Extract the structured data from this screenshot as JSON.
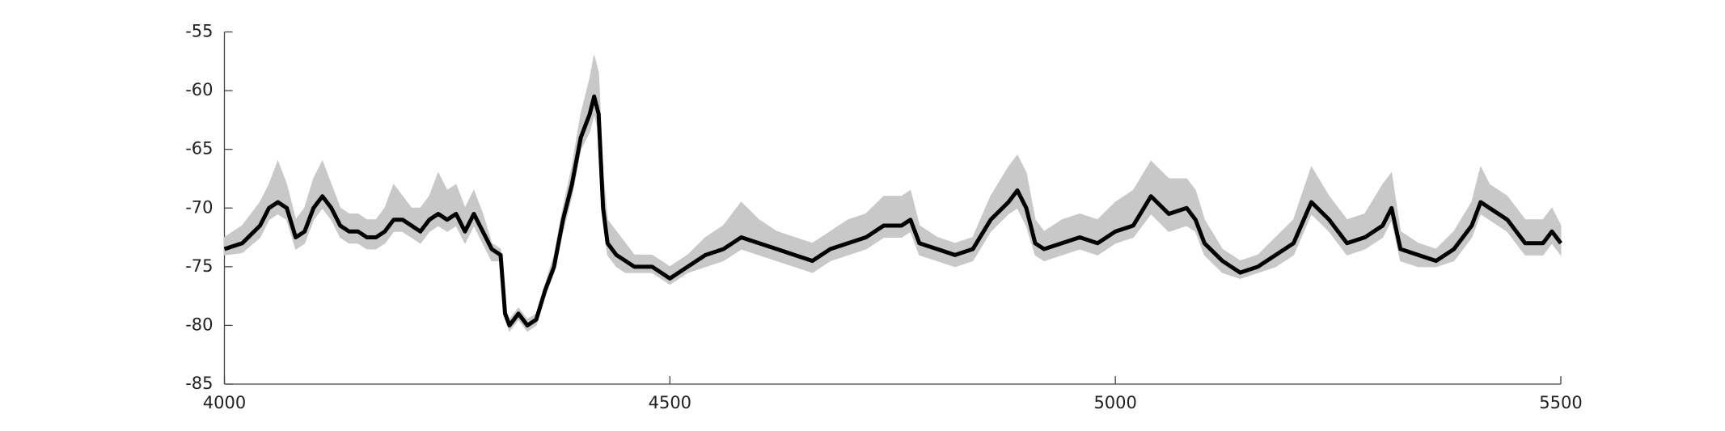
{
  "chart_data": {
    "type": "line",
    "x": [
      4000,
      4020,
      4040,
      4050,
      4060,
      4070,
      4080,
      4090,
      4100,
      4110,
      4120,
      4130,
      4140,
      4150,
      4160,
      4170,
      4180,
      4190,
      4200,
      4210,
      4220,
      4230,
      4240,
      4250,
      4260,
      4270,
      4280,
      4290,
      4300,
      4310,
      4315,
      4320,
      4330,
      4340,
      4350,
      4360,
      4370,
      4380,
      4390,
      4400,
      4410,
      4415,
      4420,
      4425,
      4430,
      4440,
      4450,
      4460,
      4470,
      4480,
      4490,
      4500,
      4510,
      4520,
      4540,
      4560,
      4580,
      4600,
      4620,
      4640,
      4660,
      4680,
      4700,
      4720,
      4740,
      4760,
      4770,
      4780,
      4800,
      4820,
      4840,
      4860,
      4880,
      4890,
      4900,
      4910,
      4920,
      4940,
      4960,
      4980,
      5000,
      5020,
      5040,
      5060,
      5080,
      5090,
      5100,
      5120,
      5140,
      5160,
      5180,
      5200,
      5220,
      5240,
      5260,
      5280,
      5300,
      5310,
      5320,
      5340,
      5360,
      5380,
      5400,
      5410,
      5420,
      5440,
      5460,
      5480,
      5490,
      5500
    ],
    "series": [
      {
        "color": "#000000",
        "values": [
          -73.5,
          -73,
          -71.5,
          -70,
          -69.5,
          -70,
          -72.5,
          -72,
          -70,
          -69,
          -70,
          -71.5,
          -72,
          -72,
          -72.5,
          -72.5,
          -72,
          -71,
          -71,
          -71.5,
          -72,
          -71,
          -70.5,
          -71,
          -70.5,
          -72,
          -70.5,
          -72,
          -73.5,
          -74,
          -79,
          -80,
          -79,
          -80,
          -79.5,
          -77,
          -75,
          -71,
          -68,
          -64,
          -62,
          -60.5,
          -62,
          -70,
          -73,
          -74,
          -74.5,
          -75,
          -75,
          -75,
          -75.5,
          -76,
          -75.5,
          -75,
          -74,
          -73.5,
          -72.5,
          -73,
          -73.5,
          -74,
          -74.5,
          -73.5,
          -73,
          -72.5,
          -71.5,
          -71.5,
          -71,
          -73,
          -73.5,
          -74,
          -73.5,
          -71,
          -69.5,
          -68.5,
          -70,
          -73,
          -73.5,
          -73,
          -72.5,
          -73,
          -72,
          -71.5,
          -69,
          -70.5,
          -70,
          -71,
          -73,
          -74.5,
          -75.5,
          -75,
          -74,
          -73,
          -69.5,
          -71,
          -73,
          -72.5,
          -71.5,
          -70,
          -73.5,
          -74,
          -74.5,
          -73.5,
          -71.5,
          -69.5,
          -70,
          -71,
          -73,
          -73,
          -72,
          -73
        ]
      },
      {
        "color": "#c8c8c8",
        "values": [
          -72.5,
          -71.5,
          -69.5,
          -68,
          -66,
          -68,
          -71,
          -70,
          -67.5,
          -66,
          -68,
          -70,
          -70.5,
          -70.5,
          -71,
          -71,
          -70,
          -68,
          -69,
          -70,
          -70,
          -69,
          -67,
          -68.5,
          -68,
          -70,
          -68.5,
          -70.5,
          -73,
          -73.5,
          -78.5,
          -79.5,
          -78.5,
          -79.5,
          -79,
          -76.5,
          -74,
          -70,
          -66.5,
          -62,
          -59,
          -57,
          -58.5,
          -67,
          -71,
          -72,
          -73,
          -74,
          -74,
          -74,
          -74.5,
          -75,
          -74.5,
          -74,
          -72.5,
          -71.5,
          -69.5,
          -71,
          -72,
          -72.5,
          -73,
          -72,
          -71,
          -70.5,
          -69,
          -69,
          -68.5,
          -71.5,
          -72.5,
          -73,
          -72.5,
          -69,
          -66.5,
          -65.5,
          -67,
          -71,
          -72,
          -71,
          -70.5,
          -71,
          -69.5,
          -68.5,
          -66,
          -67.5,
          -67.5,
          -68.5,
          -71,
          -73.5,
          -74.5,
          -74,
          -72.5,
          -71,
          -66.5,
          -69,
          -71,
          -70.5,
          -68,
          -67,
          -72,
          -73,
          -73.5,
          -72,
          -69.5,
          -66.5,
          -68,
          -69,
          -71,
          -71,
          -70,
          -71.5
        ]
      },
      {
        "color": "#c8c8c8",
        "values": [
          -74,
          -73.8,
          -72.5,
          -71,
          -70.5,
          -71,
          -73.5,
          -73,
          -71,
          -70,
          -71,
          -72.5,
          -73,
          -73,
          -73.5,
          -73.5,
          -73,
          -72,
          -72,
          -72.5,
          -73,
          -72,
          -71.5,
          -72,
          -71.5,
          -73,
          -71.5,
          -73,
          -74.5,
          -74.5,
          -79.5,
          -80.5,
          -79.5,
          -80.5,
          -80,
          -77.5,
          -75.5,
          -72,
          -69,
          -65,
          -63.5,
          -62,
          -63.5,
          -71,
          -74,
          -75,
          -75.5,
          -75.5,
          -75.5,
          -75.5,
          -76,
          -76.5,
          -76,
          -75.5,
          -75,
          -74.5,
          -73.5,
          -74,
          -74.5,
          -75,
          -75.5,
          -74.5,
          -74,
          -73.5,
          -72.5,
          -72.5,
          -72,
          -74,
          -74.5,
          -75,
          -74.5,
          -72,
          -70.5,
          -70,
          -71.5,
          -74,
          -74.5,
          -74,
          -73.5,
          -74,
          -73,
          -72.5,
          -70.5,
          -72,
          -71.5,
          -72,
          -74,
          -75.5,
          -76,
          -75.5,
          -75,
          -74,
          -70.5,
          -72,
          -74,
          -73.5,
          -72.5,
          -71,
          -74.5,
          -75,
          -75,
          -74.5,
          -72.5,
          -70.5,
          -71,
          -72,
          -74,
          -74,
          -73,
          -74
        ]
      }
    ],
    "xlim": [
      4000,
      5500
    ],
    "xticks": [
      4000,
      4500,
      5000,
      5500
    ],
    "ylim": [
      -85,
      -55
    ],
    "yticks": [
      -85,
      -80,
      -75,
      -70,
      -65,
      -60,
      -55
    ],
    "grid": false
  }
}
